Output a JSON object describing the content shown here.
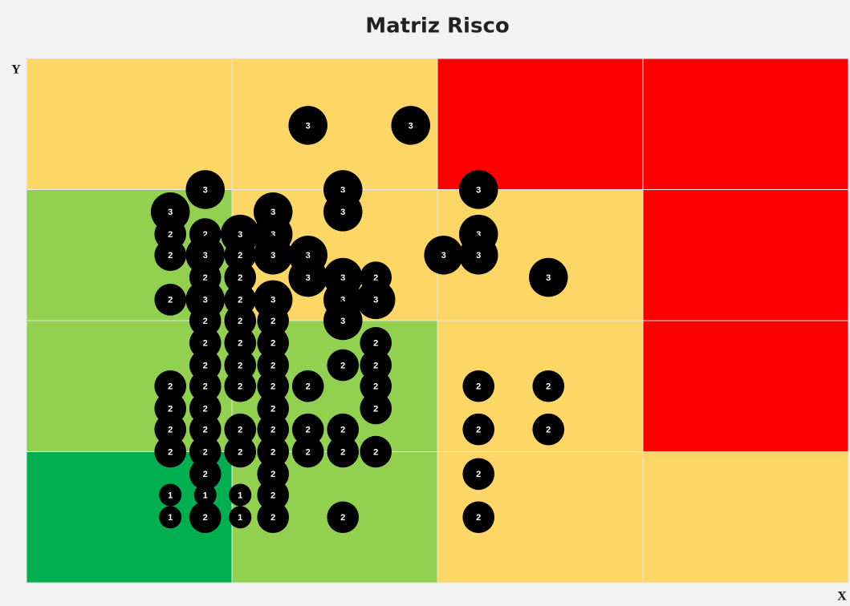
{
  "chart_data": {
    "type": "bubble",
    "title": "Matriz Risco",
    "x_label": "X",
    "y_label": "Y",
    "xlim": [
      0,
      4
    ],
    "ylim": [
      0,
      4
    ],
    "cell_colors": [
      [
        "#fdd766",
        "#fdd766",
        "#ff0000",
        "#ff0000"
      ],
      [
        "#92d050",
        "#fdd766",
        "#fdd766",
        "#ff0000"
      ],
      [
        "#92d050",
        "#92d050",
        "#fdd766",
        "#ff0000"
      ],
      [
        "#00b050",
        "#92d050",
        "#fdd766",
        "#fdd766"
      ]
    ],
    "color": "#000000",
    "x": [
      1.37,
      1.87,
      0.87,
      1.54,
      2.2,
      0.7,
      1.2,
      1.54,
      0.7,
      0.87,
      1.04,
      1.2,
      2.2,
      0.7,
      0.87,
      1.04,
      1.2,
      1.37,
      2.03,
      2.2,
      0.87,
      1.04,
      1.37,
      1.54,
      1.7,
      2.54,
      0.7,
      0.87,
      1.04,
      1.2,
      1.54,
      1.7,
      0.87,
      1.04,
      1.2,
      1.54,
      0.87,
      1.04,
      1.2,
      1.7,
      0.87,
      1.04,
      1.2,
      1.54,
      1.7,
      0.7,
      0.87,
      1.04,
      1.2,
      1.37,
      1.7,
      2.2,
      2.54,
      0.7,
      0.87,
      1.2,
      1.7,
      0.7,
      0.87,
      1.04,
      1.2,
      1.37,
      1.54,
      2.2,
      2.54,
      0.7,
      0.87,
      1.04,
      1.2,
      1.37,
      1.54,
      1.7,
      0.87,
      1.2,
      2.2,
      0.7,
      0.87,
      1.04,
      1.2,
      0.7,
      0.87,
      1.04,
      1.2,
      1.54,
      2.2
    ],
    "y": [
      3.49,
      3.49,
      3.0,
      3.0,
      3.0,
      2.83,
      2.83,
      2.83,
      2.66,
      2.66,
      2.66,
      2.66,
      2.66,
      2.5,
      2.5,
      2.5,
      2.5,
      2.5,
      2.5,
      2.5,
      2.33,
      2.33,
      2.33,
      2.33,
      2.33,
      2.33,
      2.16,
      2.16,
      2.16,
      2.16,
      2.16,
      2.16,
      2.0,
      2.0,
      2.0,
      2.0,
      1.83,
      1.83,
      1.83,
      1.83,
      1.66,
      1.66,
      1.66,
      1.66,
      1.66,
      1.5,
      1.5,
      1.5,
      1.5,
      1.5,
      1.5,
      1.5,
      1.5,
      1.33,
      1.33,
      1.33,
      1.33,
      1.17,
      1.17,
      1.17,
      1.17,
      1.17,
      1.17,
      1.17,
      1.17,
      1.0,
      1.0,
      1.0,
      1.0,
      1.0,
      1.0,
      1.0,
      0.83,
      0.83,
      0.83,
      0.67,
      0.67,
      0.67,
      0.67,
      0.5,
      0.5,
      0.5,
      0.5,
      0.5,
      0.5
    ],
    "sizes": [
      3,
      3,
      3,
      3,
      3,
      3,
      3,
      3,
      2,
      2,
      3,
      3,
      3,
      2,
      3,
      2,
      3,
      3,
      3,
      3,
      2,
      2,
      3,
      3,
      2,
      3,
      2,
      3,
      2,
      3,
      3,
      3,
      2,
      2,
      2,
      3,
      2,
      2,
      2,
      2,
      2,
      2,
      2,
      2,
      2,
      2,
      2,
      2,
      2,
      2,
      2,
      2,
      2,
      2,
      2,
      2,
      2,
      2,
      2,
      2,
      2,
      2,
      2,
      2,
      2,
      2,
      2,
      2,
      2,
      2,
      2,
      2,
      2,
      2,
      2,
      1,
      1,
      1,
      2,
      1,
      2,
      1,
      2,
      2,
      2
    ]
  }
}
